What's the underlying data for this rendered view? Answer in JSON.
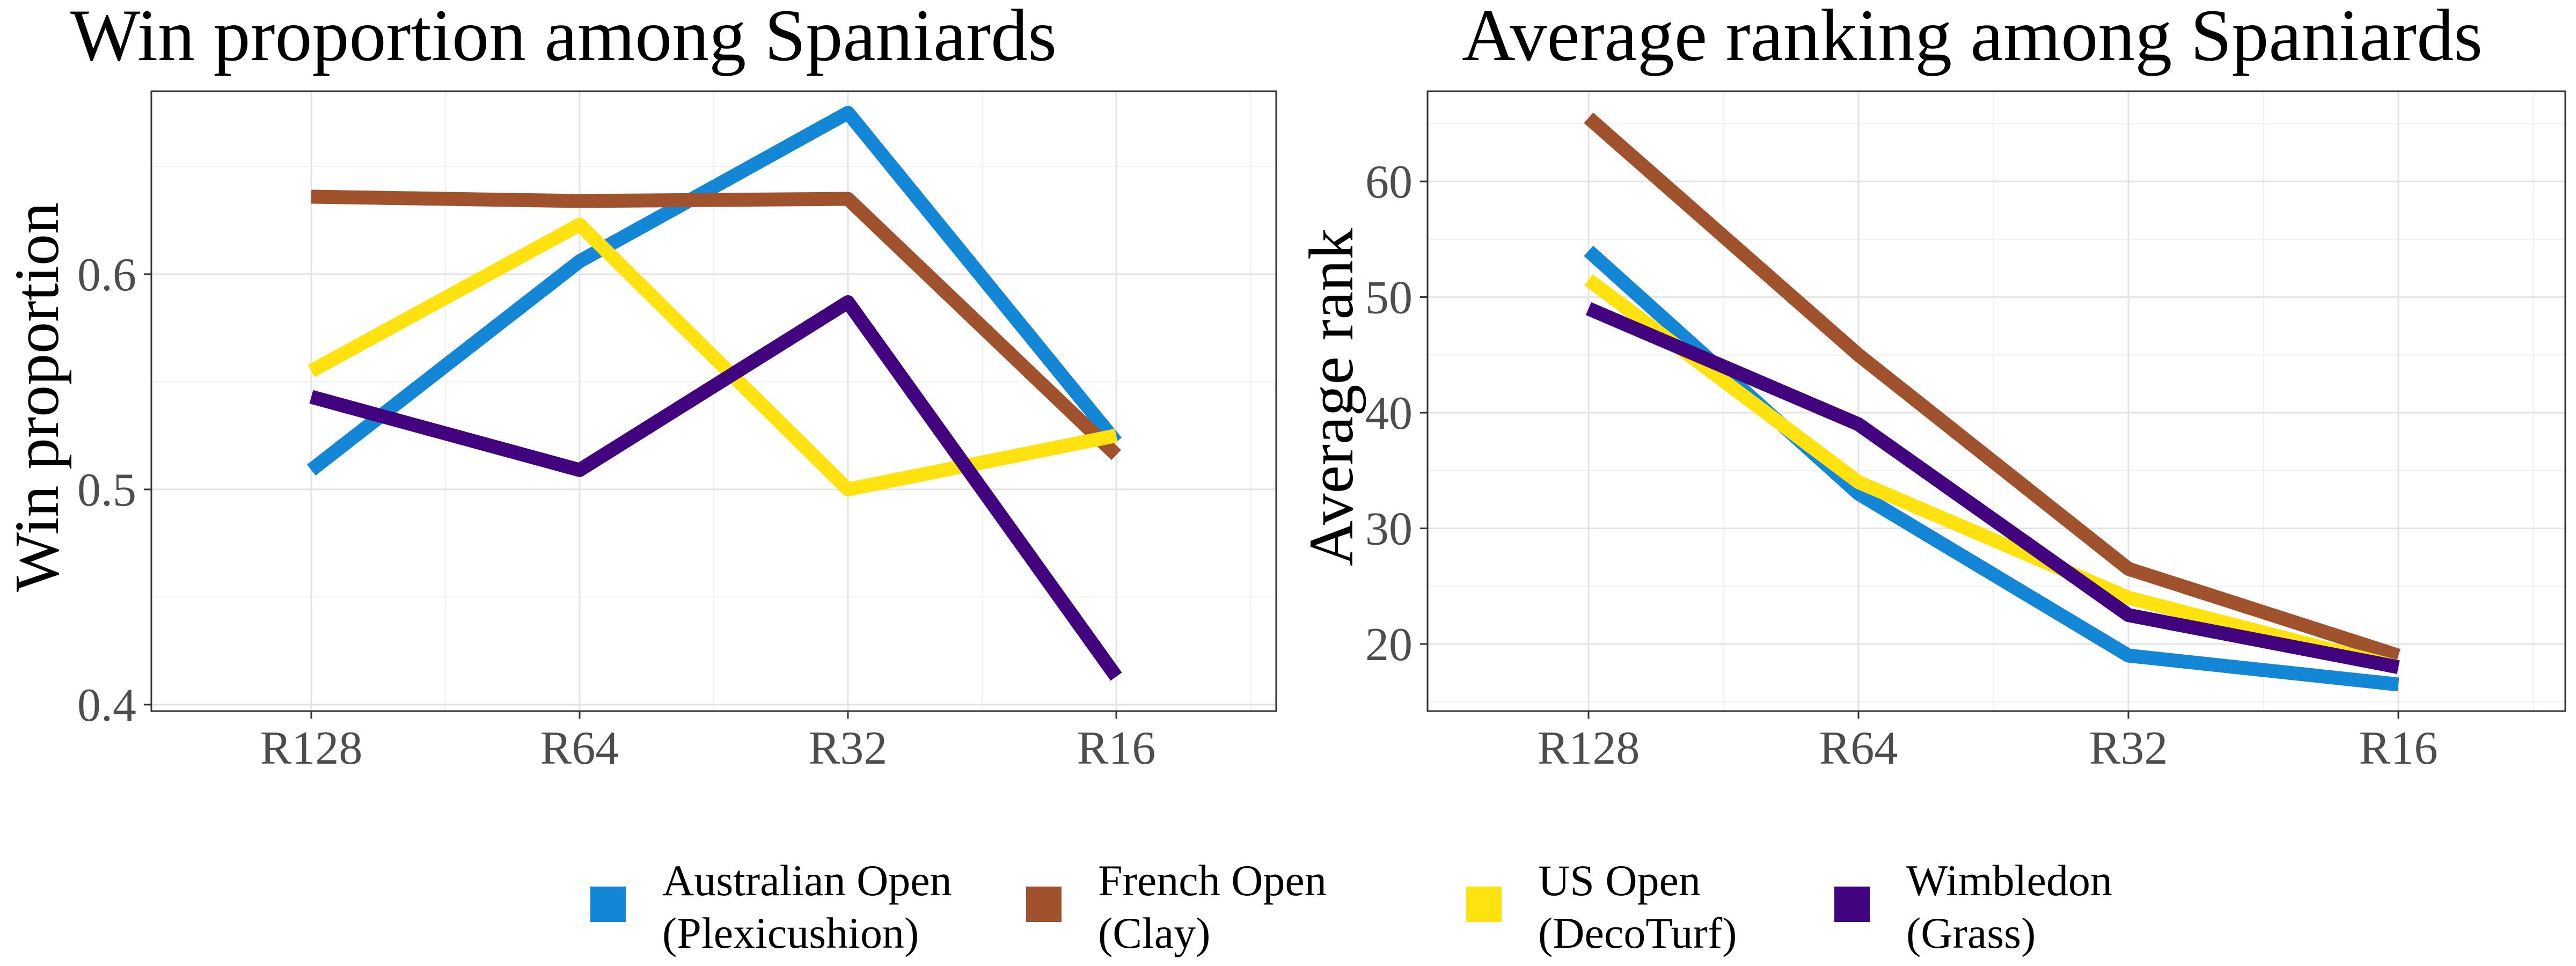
{
  "chart_data": [
    {
      "type": "line",
      "title": "Win proportion among Spaniards",
      "xlabel": "",
      "ylabel": "Win proportion",
      "categories": [
        "R128",
        "R64",
        "R32",
        "R16"
      ],
      "ylim": [
        0.397,
        0.685
      ],
      "yticks": [
        "0.4",
        "0.5",
        "0.6"
      ],
      "grid": true,
      "series": [
        {
          "name": "Australian Open (Plexicushion)",
          "color": "#1387D6",
          "values": [
            0.509,
            0.606,
            0.675,
            0.522
          ]
        },
        {
          "name": "French Open (Clay)",
          "color": "#A0522D",
          "values": [
            0.636,
            0.634,
            0.635,
            0.516
          ]
        },
        {
          "name": "US Open (DecoTurf)",
          "color": "#FFE20F",
          "values": [
            0.555,
            0.623,
            0.5,
            0.525
          ]
        },
        {
          "name": "Wimbledon (Grass)",
          "color": "#42047E",
          "values": [
            0.543,
            0.509,
            0.587,
            0.413
          ]
        }
      ]
    },
    {
      "type": "line",
      "title": "Average ranking among Spaniards",
      "xlabel": "",
      "ylabel": "Average rank",
      "categories": [
        "R128",
        "R64",
        "R32",
        "R16"
      ],
      "ylim": [
        14.2,
        67.8
      ],
      "yticks": [
        "20",
        "30",
        "40",
        "50",
        "60"
      ],
      "grid": true,
      "series": [
        {
          "name": "Australian Open (Plexicushion)",
          "color": "#1387D6",
          "values": [
            54.0,
            33.0,
            19.0,
            16.5
          ]
        },
        {
          "name": "French Open (Clay)",
          "color": "#A0522D",
          "values": [
            65.5,
            45.0,
            26.5,
            19.0
          ]
        },
        {
          "name": "US Open (DecoTurf)",
          "color": "#FFE20F",
          "values": [
            51.5,
            34.0,
            24.0,
            18.0
          ]
        },
        {
          "name": "Wimbledon (Grass)",
          "color": "#42047E",
          "values": [
            49.0,
            39.0,
            22.5,
            18.0
          ]
        }
      ]
    }
  ],
  "legend": {
    "placement": "bottom",
    "items": [
      {
        "line1": "Australian Open",
        "line2": "(Plexicushion)",
        "color": "#1387D6"
      },
      {
        "line1": "French Open",
        "line2": "(Clay)",
        "color": "#A0522D"
      },
      {
        "line1": "US Open",
        "line2": "(DecoTurf)",
        "color": "#FFE20F"
      },
      {
        "line1": "Wimbledon",
        "line2": "(Grass)",
        "color": "#42047E"
      }
    ]
  }
}
